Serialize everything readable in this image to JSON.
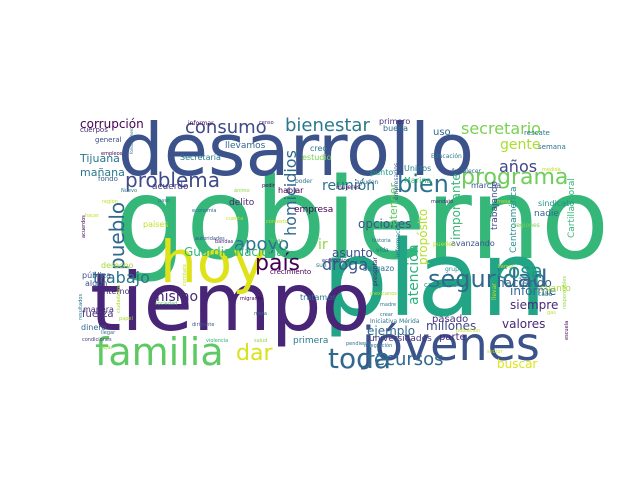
{
  "canvas": {
    "background": "#ffffff"
  },
  "words": [
    {
      "text": "gobierno",
      "color": "#35b779"
    },
    {
      "text": "plan",
      "color": "#21a585"
    },
    {
      "text": "desarrollo",
      "color": "#3b528b"
    },
    {
      "text": "tiempo",
      "color": "#482576"
    },
    {
      "text": "hoy",
      "color": "#dde318"
    },
    {
      "text": "familia",
      "color": "#5ec962"
    },
    {
      "text": "jóvenes",
      "color": "#3b528b"
    },
    {
      "text": "seguridad",
      "color": "#31688e"
    },
    {
      "text": "toda",
      "color": "#31688e"
    },
    {
      "text": "dar",
      "color": "#d8e219"
    },
    {
      "text": "país",
      "color": "#440154"
    },
    {
      "text": "pueblo",
      "color": "#31688e"
    },
    {
      "text": "problema",
      "color": "#3e4a89"
    },
    {
      "text": "bienestar",
      "color": "#2a788e"
    },
    {
      "text": "consumo",
      "color": "#3e4a89"
    },
    {
      "text": "programa",
      "color": "#6ece58"
    },
    {
      "text": "bien",
      "color": "#2c728e"
    },
    {
      "text": "recursos",
      "color": "#31688e"
    },
    {
      "text": "secretario",
      "color": "#7ad151"
    },
    {
      "text": "gente",
      "color": "#addc30"
    },
    {
      "text": "años",
      "color": "#414487"
    },
    {
      "text": "cosa",
      "color": "#21918c"
    },
    {
      "text": "apoyo",
      "color": "#2c728e"
    },
    {
      "text": "droga",
      "color": "#3b528b"
    },
    {
      "text": "trabajo",
      "color": "#2c728e"
    },
    {
      "text": "reunión",
      "color": "#2c728e"
    },
    {
      "text": "mismo",
      "color": "#482878"
    },
    {
      "text": "Guardia Nacional",
      "color": "#35b779"
    },
    {
      "text": "homicidios",
      "color": "#31688e"
    },
    {
      "text": "corrupción",
      "color": "#440154"
    },
    {
      "text": "ir",
      "color": "#8fd744"
    },
    {
      "text": "atención",
      "color": "#2db27d"
    },
    {
      "text": "opciones",
      "color": "#3b528b"
    },
    {
      "text": "millones",
      "color": "#3e4a89"
    },
    {
      "text": "valores",
      "color": "#482878"
    },
    {
      "text": "buscar",
      "color": "#dde318"
    },
    {
      "text": "siempre",
      "color": "#482878"
    },
    {
      "text": "informe",
      "color": "#31688e"
    },
    {
      "text": "haciendo",
      "color": "#31688e"
    },
    {
      "text": "importante",
      "color": "#35b779"
    },
    {
      "text": "propósito",
      "color": "#b5de2b"
    },
    {
      "text": "asunto",
      "color": "#3b528b"
    },
    {
      "text": "ejemplo",
      "color": "#31688e"
    },
    {
      "text": "Tijuana",
      "color": "#2a788e"
    },
    {
      "text": "mañana",
      "color": "#2a788e"
    },
    {
      "text": "fuerza",
      "color": "#46327e"
    },
    {
      "text": "Cartilla Moral",
      "color": "#35b779"
    },
    {
      "text": "Centroamérica",
      "color": "#21918c"
    },
    {
      "text": "trabajando",
      "color": "#3e4a89"
    },
    {
      "text": "atender",
      "color": "#5ec962"
    },
    {
      "text": "pasado",
      "color": "#46327e"
    },
    {
      "text": "parte",
      "color": "#482878"
    },
    {
      "text": "nadie",
      "color": "#31688e"
    },
    {
      "text": "cuanto",
      "color": "#addc30"
    },
    {
      "text": "uso",
      "color": "#31688e"
    },
    {
      "text": "empresa",
      "color": "#440154"
    },
    {
      "text": "acuerdo",
      "color": "#443983"
    },
    {
      "text": "delito",
      "color": "#482878"
    },
    {
      "text": "universidades",
      "color": "#46327e"
    },
    {
      "text": "primera",
      "color": "#2a788e"
    },
    {
      "text": "llevamos",
      "color": "#31688e"
    },
    {
      "text": "Secretaría",
      "color": "#287d8e"
    },
    {
      "text": "buena",
      "color": "#31688e"
    },
    {
      "text": "primero",
      "color": "#46327e"
    },
    {
      "text": "Unidos",
      "color": "#287d8e"
    },
    {
      "text": "Marina",
      "color": "#35b779"
    },
    {
      "text": "punto",
      "color": "#1fa188"
    },
    {
      "text": "creo",
      "color": "#2c728e"
    },
    {
      "text": "estudio",
      "color": "#7ad151"
    },
    {
      "text": "cuerpos",
      "color": "#482878"
    },
    {
      "text": "general",
      "color": "#3e4a89"
    },
    {
      "text": "fondo",
      "color": "#31688e"
    },
    {
      "text": "países",
      "color": "#c2df23"
    },
    {
      "text": "sindicato",
      "color": "#21918c"
    },
    {
      "text": "rescate",
      "color": "#2c728e"
    },
    {
      "text": "semana",
      "color": "#2c728e"
    },
    {
      "text": "marcha",
      "color": "#39568c"
    },
    {
      "text": "avanzando",
      "color": "#3b528b"
    },
    {
      "text": "sargazo",
      "color": "#2c728e"
    },
    {
      "text": "crecimiento",
      "color": "#440154"
    },
    {
      "text": "tratamos",
      "color": "#2c728e"
    },
    {
      "text": "interno",
      "color": "#472d7b"
    },
    {
      "text": "manera",
      "color": "#482878"
    },
    {
      "text": "dinero",
      "color": "#31688e"
    },
    {
      "text": "algún",
      "color": "#3b528b"
    },
    {
      "text": "pública",
      "color": "#3b528b"
    },
    {
      "text": "derecho",
      "color": "#a0da39"
    },
    {
      "text": "campaña",
      "color": "#21918c"
    },
    {
      "text": "hablar",
      "color": "#440154"
    },
    {
      "text": "informar",
      "color": "#440154"
    },
    {
      "text": "regiones",
      "color": "#7ad151"
    },
    {
      "text": "cabo",
      "color": "#2c728e"
    },
    {
      "text": "pueden",
      "color": "#b5de2b"
    },
    {
      "text": "llevar",
      "color": "#c2df23"
    },
    {
      "text": "información",
      "color": "#2a788e"
    },
    {
      "text": "empresarios",
      "color": "#3b528b"
    },
    {
      "text": "mujeres",
      "color": "#440154"
    },
    {
      "text": "ayuden",
      "color": "#31688e"
    },
    {
      "text": "Educación",
      "color": "#2a788e"
    },
    {
      "text": "fortalecer",
      "color": "#31688e"
    },
    {
      "text": "poder",
      "color": "#2c728e"
    },
    {
      "text": "presentar",
      "color": "#482878"
    },
    {
      "text": "Iniciativa Mérida",
      "color": "#2a788e"
    },
    {
      "text": "pendiente",
      "color": "#2c728e"
    },
    {
      "text": "integración",
      "color": "#2c728e"
    },
    {
      "text": "grupo",
      "color": "#21918c"
    },
    {
      "text": "sufi",
      "color": "#2a788e"
    },
    {
      "text": "vida",
      "color": "#2a788e"
    },
    {
      "text": "económico",
      "color": "#482878"
    },
    {
      "text": "historia",
      "color": "#2c728e"
    },
    {
      "text": "migrante",
      "color": "#440154"
    },
    {
      "text": "dirigente",
      "color": "#3b528b"
    },
    {
      "text": "autoridades",
      "color": "#3b528b"
    },
    {
      "text": "economía",
      "color": "#31688e"
    },
    {
      "text": "bandas",
      "color": "#482878"
    },
    {
      "text": "mandato",
      "color": "#482878"
    },
    {
      "text": "pedir",
      "color": "#440154"
    },
    {
      "text": "meta",
      "color": "#31688e"
    },
    {
      "text": "censo",
      "color": "#482878"
    },
    {
      "text": "empleos",
      "color": "#440154"
    },
    {
      "text": "Nuevo",
      "color": "#2a788e"
    },
    {
      "text": "condiciones",
      "color": "#443983"
    },
    {
      "text": "llegar",
      "color": "#2c728e"
    },
    {
      "text": "fosas",
      "color": "#5ec962"
    },
    {
      "text": "paso",
      "color": "#2a788e"
    },
    {
      "text": "violencia",
      "color": "#2db27d"
    },
    {
      "text": "crear",
      "color": "#2c728e"
    },
    {
      "text": "sociedad",
      "color": "#5ec962"
    },
    {
      "text": "madre",
      "color": "#2a788e"
    },
    {
      "text": "acuerdos",
      "color": "#440154"
    },
    {
      "text": "resultados",
      "color": "#2a788e"
    },
    {
      "text": "fondo minero",
      "color": "#31688e"
    },
    {
      "text": "papel",
      "color": "#addc30"
    },
    {
      "text": "ciudadanos",
      "color": "#addc30"
    },
    {
      "text": "combate",
      "color": "#c2df23"
    },
    {
      "text": "responsables",
      "color": "#8fd744"
    },
    {
      "text": "mexicanos",
      "color": "#addc30"
    },
    {
      "text": "escuela",
      "color": "#440154"
    },
    {
      "text": "contexto",
      "color": "#c2df23"
    },
    {
      "text": "población",
      "color": "#c2df23"
    },
    {
      "text": "cuenta",
      "color": "#c2df23"
    },
    {
      "text": "ánimo",
      "color": "#8fd744"
    },
    {
      "text": "mesa",
      "color": "#c2df23"
    },
    {
      "text": "llamar",
      "color": "#c2df23"
    },
    {
      "text": "sector",
      "color": "#c2df23"
    },
    {
      "text": "dejar",
      "color": "#8fd744"
    },
    {
      "text": "gas",
      "color": "#c2df23"
    },
    {
      "text": "hacer",
      "color": "#c2df23"
    },
    {
      "text": "salud",
      "color": "#8fd744"
    },
    {
      "text": "medida",
      "color": "#c2df23"
    },
    {
      "text": "región",
      "color": "#c2df23"
    }
  ]
}
